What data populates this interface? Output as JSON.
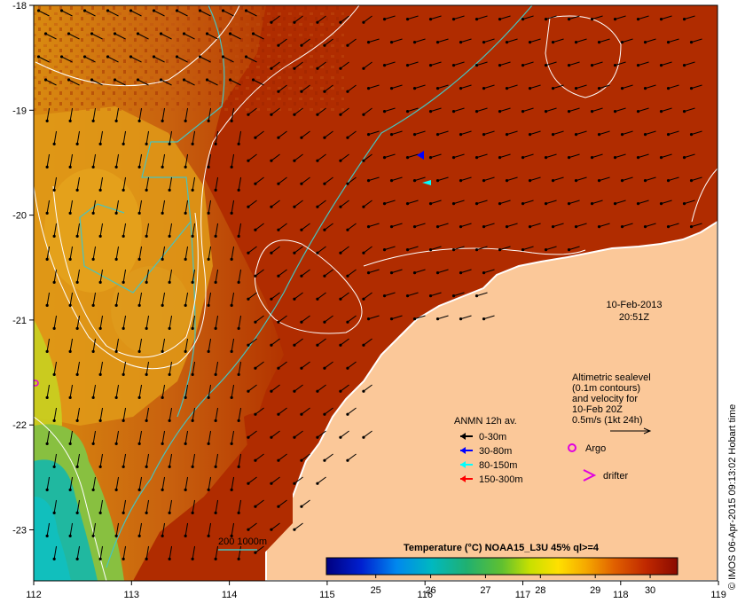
{
  "map": {
    "lon_ticks": [
      "112",
      "113",
      "114",
      "115",
      "116",
      "117",
      "118",
      "119"
    ],
    "lat_ticks": [
      "-18",
      "-19",
      "-20",
      "-21",
      "-22",
      "-23"
    ],
    "date": "10-Feb-2013",
    "time": "20:51Z",
    "credit": "© IMOS 06-Apr-2015 09:13:02 Hobart time"
  },
  "altimetry": {
    "line1": "Altimetric sealevel",
    "line2": "(0.1m contours)",
    "line3": "and velocity for",
    "line4": "10-Feb 20Z",
    "scale": "0.5m/s (1kt 24h)"
  },
  "legend": {
    "title": "ANMN 12h av.",
    "items": [
      {
        "label": "0-30m",
        "color": "#000000"
      },
      {
        "label": "30-80m",
        "color": "#0000ff"
      },
      {
        "label": "80-150m",
        "color": "#00ffff"
      },
      {
        "label": "150-300m",
        "color": "#ff0000"
      }
    ],
    "argo": "Argo",
    "drifter": "drifter"
  },
  "isobath": {
    "label": "200  1000m"
  },
  "colorbar": {
    "title": "Temperature (°C) NOAA15_L3U 45% ql>=4",
    "ticks": [
      "25",
      "26",
      "27",
      "28",
      "29",
      "30"
    ],
    "range": [
      24.1,
      30.5
    ]
  },
  "colors": {
    "land": "#FBC899",
    "sst_warm": "#B02C00",
    "contour": "#ffffff",
    "isobath": "#46C4C0",
    "argo": "#e000e0"
  }
}
